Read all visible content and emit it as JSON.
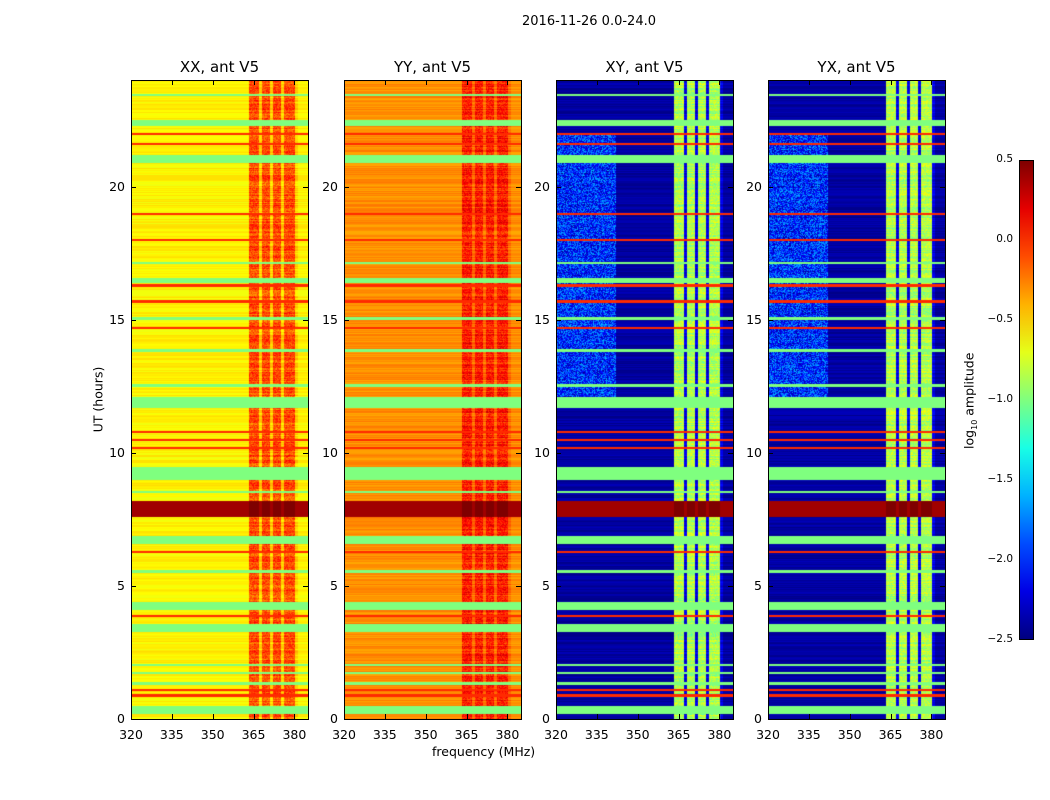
{
  "chart_data": {
    "type": "heatmap",
    "title": "2016-11-26 0.0-24.0",
    "xlabel": "frequency (MHz)",
    "ylabel": "UT (hours)",
    "xlim": [
      320,
      385
    ],
    "ylim": [
      0,
      24
    ],
    "xticks": [
      "320",
      "335",
      "350",
      "365",
      "380"
    ],
    "xtick_values": [
      320,
      335,
      350,
      365,
      380
    ],
    "yticks": [
      "0",
      "5",
      "10",
      "15",
      "20"
    ],
    "ytick_values": [
      0,
      5,
      10,
      15,
      20
    ],
    "colorbar": {
      "label": "log10 amplitude",
      "label_main": "log",
      "label_sub": "10",
      "label_rest": " amplitude",
      "range": [
        -2.5,
        0.5
      ],
      "ticks": [
        "0.5",
        "0.0",
        "−0.5",
        "−1.0",
        "−1.5",
        "−2.0",
        "−2.5"
      ],
      "tick_values": [
        0.5,
        0.0,
        -0.5,
        -1.0,
        -1.5,
        -2.0,
        -2.5
      ],
      "colormap": "jet"
    },
    "panels": [
      {
        "title": "XX, ant V5",
        "base": -0.6,
        "band": -0.1,
        "gaps": -0.5
      },
      {
        "title": "YY, ant V5",
        "base": -0.3,
        "band": 0.05,
        "gaps": -0.2
      },
      {
        "title": "XY, ant V5",
        "base": -2.4,
        "band": -0.85,
        "gaps": -2.2
      },
      {
        "title": "YX, ant V5",
        "base": -2.4,
        "band": -0.85,
        "gaps": -2.2
      }
    ],
    "band_columns_mhz": [
      [
        363,
        367
      ],
      [
        368,
        371
      ],
      [
        372,
        375
      ],
      [
        376,
        380
      ]
    ],
    "flagged_rows_hours": [
      [
        0.2,
        0.5
      ],
      [
        1.3,
        1.4
      ],
      [
        1.7,
        1.8
      ],
      [
        2.0,
        2.1
      ],
      [
        3.3,
        3.6
      ],
      [
        4.1,
        4.4
      ],
      [
        5.5,
        5.6
      ],
      [
        6.6,
        6.9
      ],
      [
        8.5,
        8.6
      ],
      [
        9.0,
        9.5
      ],
      [
        11.7,
        12.1
      ],
      [
        12.5,
        12.6
      ],
      [
        13.8,
        13.9
      ],
      [
        15.0,
        15.1
      ],
      [
        16.4,
        16.6
      ],
      [
        17.1,
        17.2
      ],
      [
        20.9,
        21.2
      ],
      [
        22.3,
        22.5
      ],
      [
        23.4,
        23.5
      ]
    ],
    "flagged_value": -1.0,
    "rfi_rows_hours": [
      0.9,
      1.1,
      3.9,
      6.3,
      10.2,
      10.5,
      10.8,
      14.7,
      15.7,
      16.3,
      18.0,
      19.0,
      21.6,
      22.0
    ],
    "rfi_value": 0.0,
    "saturated_hours": [
      7.6,
      8.2
    ],
    "saturated_value": 0.5
  }
}
